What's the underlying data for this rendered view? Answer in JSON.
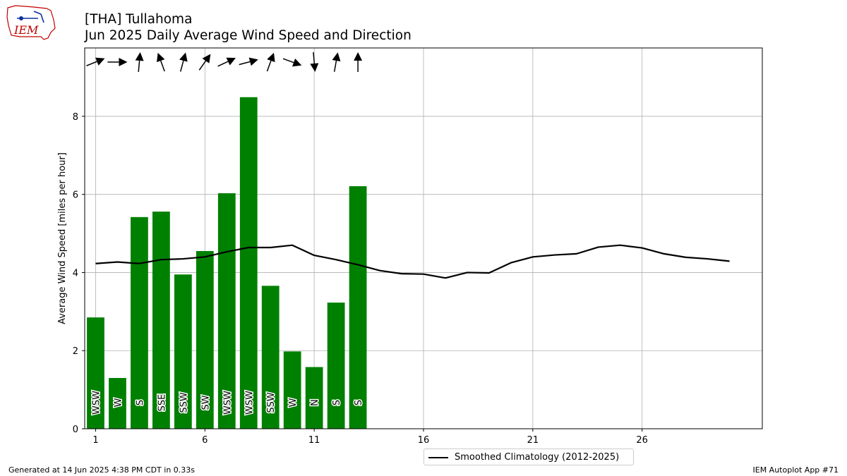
{
  "header": {
    "title_line1": "[THA] Tullahoma",
    "title_line2": "Jun 2025 Daily Average Wind Speed and Direction",
    "logo_text": "IEM"
  },
  "footer": {
    "left": "Generated at 14 Jun 2025 4:38 PM CDT in 0.33s",
    "right": "IEM Autoplot App #71"
  },
  "legend": {
    "label": "Smoothed Climatology (2012-2025)"
  },
  "colors": {
    "bar": "#008000",
    "climo_line": "#000000",
    "grid": "#b0b0b0",
    "logo": "#c00000"
  },
  "chart_data": {
    "type": "bar",
    "ylabel": "Average Wind Speed [miles per hour]",
    "xlim": [
      0.5,
      31.5
    ],
    "ylim": [
      0,
      9.75
    ],
    "xticks": [
      1,
      6,
      11,
      16,
      21,
      26
    ],
    "yticks": [
      0,
      2,
      4,
      6,
      8
    ],
    "grid": true,
    "legend_position": "bottom-center",
    "bars": {
      "days": [
        1,
        2,
        3,
        4,
        5,
        6,
        7,
        8,
        9,
        10,
        11,
        12,
        13
      ],
      "values": [
        2.85,
        1.3,
        5.42,
        5.56,
        3.95,
        4.55,
        6.03,
        8.49,
        3.66,
        1.98,
        1.58,
        3.23,
        6.21
      ],
      "directions": [
        "WSW",
        "W",
        "S",
        "SSE",
        "SSW",
        "SW",
        "WSW",
        "WSW",
        "SSW",
        "W",
        "N",
        "S",
        "S"
      ],
      "direction_degrees": [
        248,
        270,
        185,
        160,
        195,
        215,
        245,
        255,
        200,
        290,
        355,
        190,
        180
      ]
    },
    "series": [
      {
        "name": "Smoothed Climatology (2012-2025)",
        "x": [
          1,
          2,
          3,
          4,
          5,
          6,
          7,
          8,
          9,
          10,
          11,
          12,
          13,
          14,
          15,
          16,
          17,
          18,
          19,
          20,
          21,
          22,
          23,
          24,
          25,
          26,
          27,
          28,
          29,
          30
        ],
        "values": [
          4.23,
          4.27,
          4.23,
          4.33,
          4.35,
          4.4,
          4.53,
          4.64,
          4.64,
          4.7,
          4.44,
          4.33,
          4.2,
          4.05,
          3.97,
          3.96,
          3.86,
          4.0,
          3.99,
          4.25,
          4.4,
          4.45,
          4.48,
          4.65,
          4.7,
          4.63,
          4.48,
          4.39,
          4.35,
          4.29
        ]
      }
    ]
  }
}
